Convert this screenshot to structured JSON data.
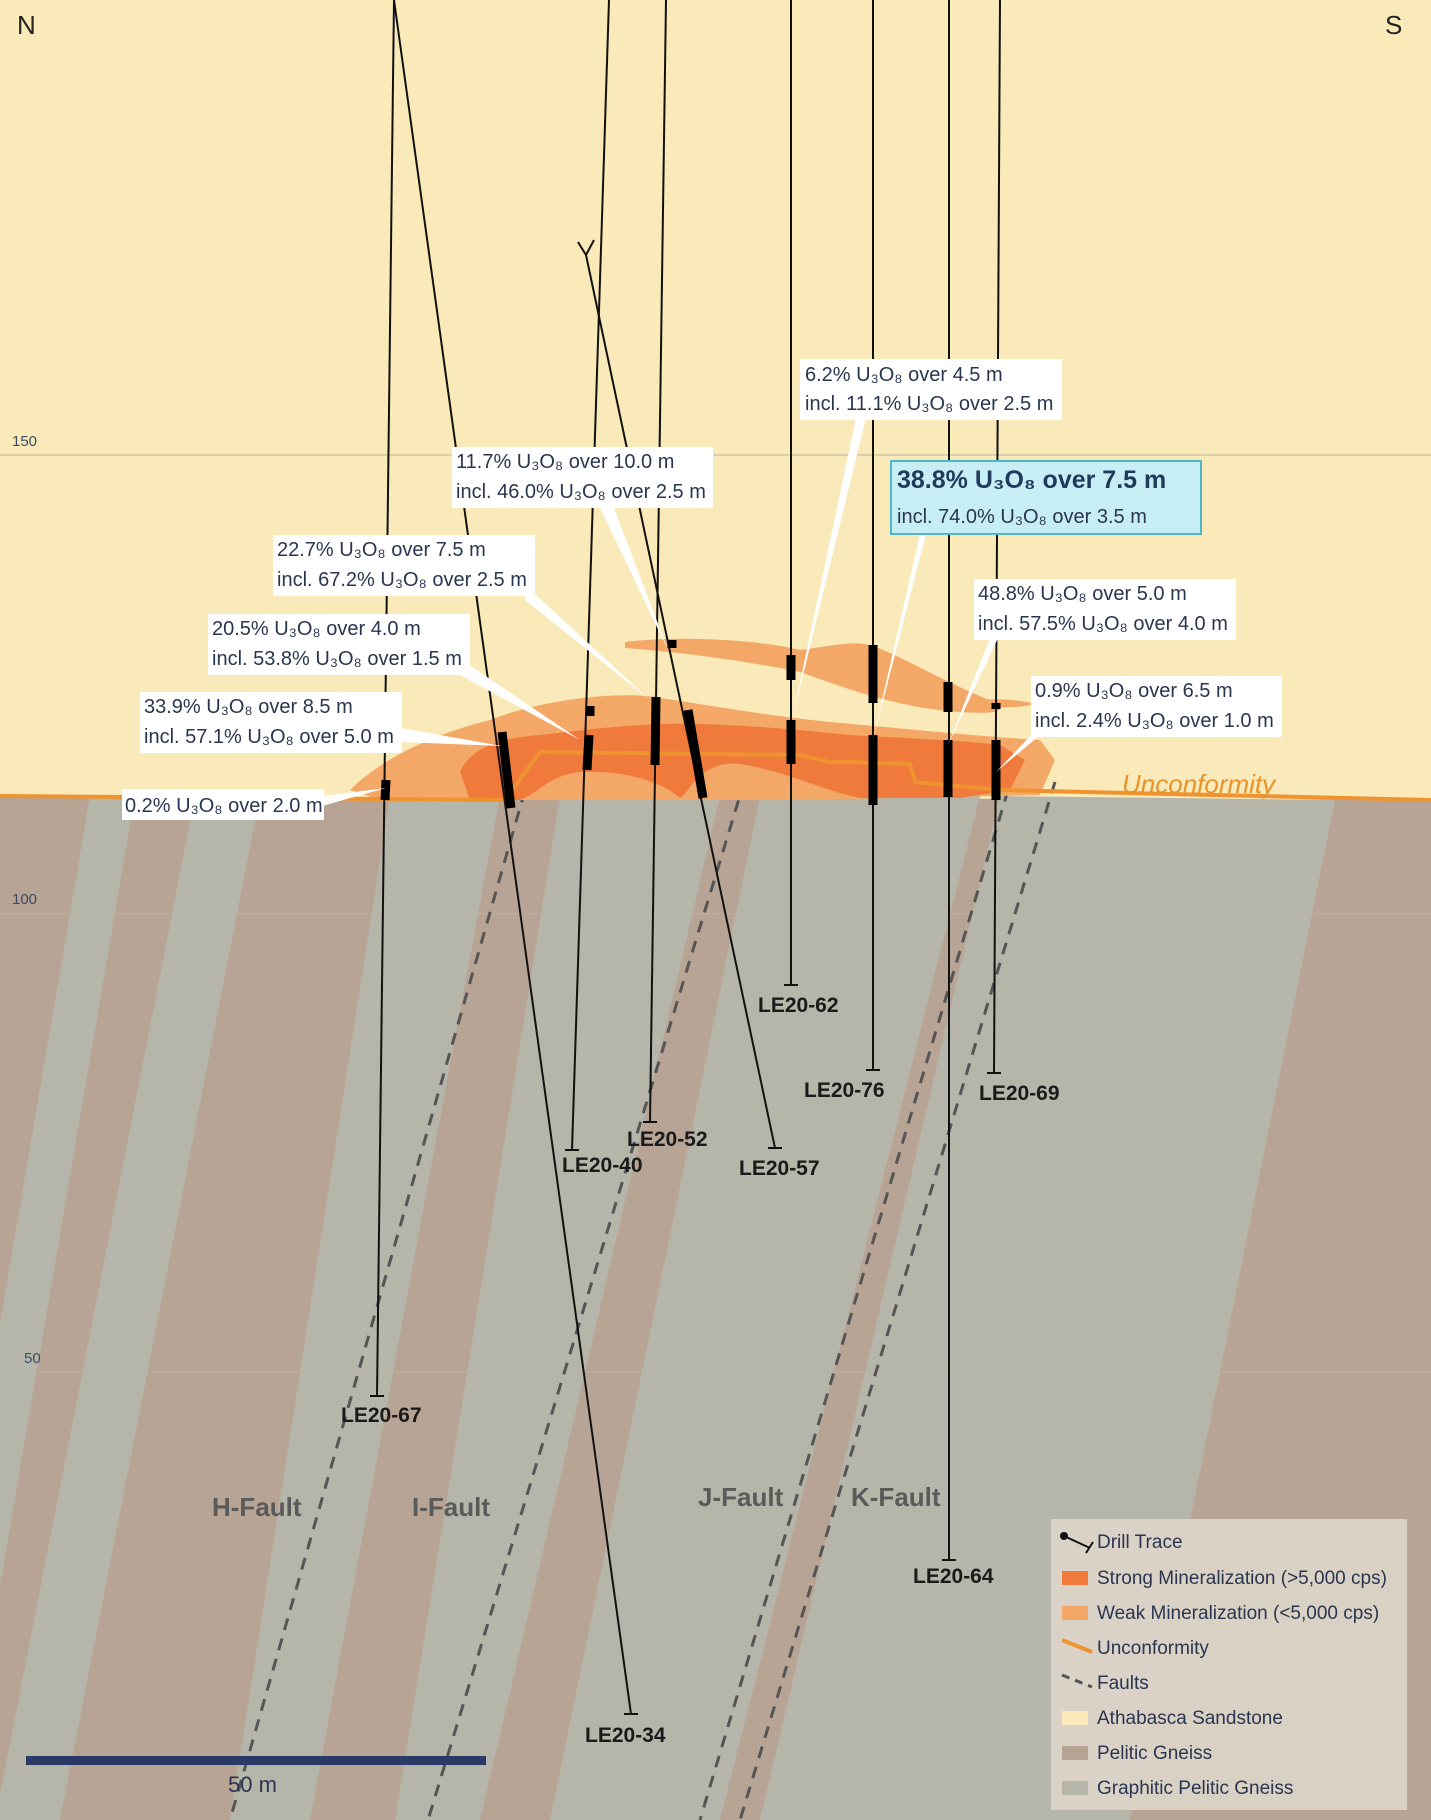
{
  "directions": {
    "north": "N",
    "south": "S"
  },
  "elevations": [
    "150",
    "100",
    "50"
  ],
  "unconformity_label": "Unconformity",
  "drill_holes": [
    "LE20-67",
    "LE20-34",
    "LE20-40",
    "LE20-52",
    "LE20-57",
    "LE20-62",
    "LE20-76",
    "LE20-64",
    "LE20-69"
  ],
  "faults": [
    "H-Fault",
    "I-Fault",
    "J-Fault",
    "K-Fault"
  ],
  "callouts": [
    {
      "line1": "0.2% U₃O₈ over 2.0 m"
    },
    {
      "line1": "33.9% U₃O₈ over 8.5 m",
      "line2": "incl. 57.1% U₃O₈ over 5.0 m"
    },
    {
      "line1": "20.5% U₃O₈ over 4.0 m",
      "line2": "incl. 53.8% U₃O₈ over 1.5 m"
    },
    {
      "line1": "22.7% U₃O₈ over 7.5 m",
      "line2": "incl. 67.2% U₃O₈ over 2.5 m"
    },
    {
      "line1": "11.7% U₃O₈ over 10.0 m",
      "line2": "incl. 46.0% U₃O₈ over 2.5 m"
    },
    {
      "line1": "6.2% U₃O₈ over 4.5 m",
      "line2": "incl. 11.1% U₃O₈ over 2.5 m"
    },
    {
      "line1": "38.8% U₃O₈ over 7.5 m",
      "line2": "incl. 74.0% U₃O₈ over 3.5 m"
    },
    {
      "line1": "48.8% U₃O₈ over 5.0 m",
      "line2": "incl. 57.5% U₃O₈ over 4.0 m"
    },
    {
      "line1": "0.9% U₃O₈ over 6.5 m",
      "line2": "incl. 2.4% U₃O₈ over 1.0 m"
    }
  ],
  "legend": {
    "items": [
      "Drill Trace",
      "Strong Mineralization (>5,000 cps)",
      "Weak Mineralization (<5,000 cps)",
      "Unconformity",
      "Faults",
      "Athabasca Sandstone",
      "Pelitic Gneiss",
      "Graphitic Pelitic Gneiss"
    ]
  },
  "scale_bar": {
    "label": "50 m"
  },
  "colors": {
    "sandstone": "#faeab9",
    "pelitic": "#b8a494",
    "graphitic": "#b5b5aa",
    "strong": "#ef7a3c",
    "weak": "#f4a868",
    "unconformity": "#ee9330",
    "highlight_box": "#c8eef5",
    "scale": "#2a3a66"
  }
}
